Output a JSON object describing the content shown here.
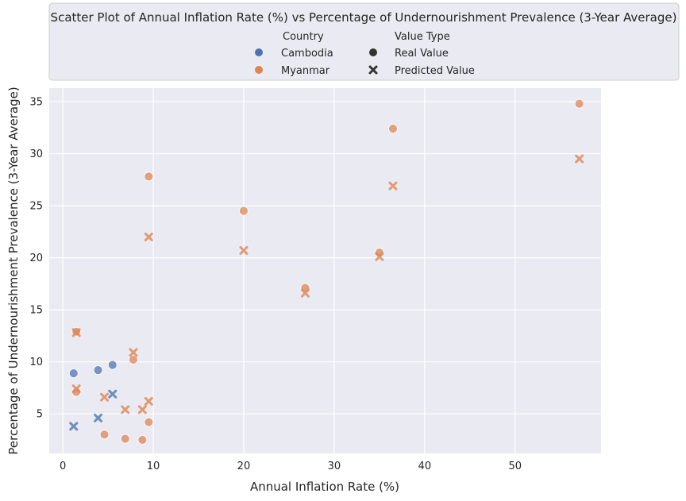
{
  "chart_data": {
    "type": "scatter",
    "title": "Scatter Plot of Annual Inflation Rate (%) vs Percentage of Undernourishment Prevalence (3-Year Average)",
    "xlabel": "Annual Inflation Rate (%)",
    "ylabel": "Percentage of Undernourishment Prevalence (3-Year Average)",
    "xlim": [
      -1.5,
      59.5
    ],
    "ylim": [
      1.2,
      36.3
    ],
    "xticks": [
      0,
      10,
      20,
      30,
      40,
      50
    ],
    "yticks": [
      5,
      10,
      15,
      20,
      25,
      30,
      35
    ],
    "grid": true,
    "legend_position": "top-center",
    "legend": {
      "hue_title": "Country",
      "style_title": "Value Type",
      "hue_entries": [
        {
          "label": "Cambodia",
          "color": "#4c72b0"
        },
        {
          "label": "Myanmar",
          "color": "#dd8452"
        }
      ],
      "style_entries": [
        {
          "label": "Real Value",
          "marker": "circle"
        },
        {
          "label": "Predicted Value",
          "marker": "x"
        }
      ]
    },
    "colors": {
      "Cambodia": "#4c72b0",
      "Myanmar": "#dd8452",
      "plot_bg": "#eaeaf2",
      "grid": "#ffffff"
    },
    "series": [
      {
        "country": "Cambodia",
        "type": "Real Value",
        "marker": "circle",
        "points": [
          [
            1.2,
            8.9
          ],
          [
            3.9,
            9.2
          ],
          [
            5.5,
            9.7
          ]
        ]
      },
      {
        "country": "Cambodia",
        "type": "Predicted Value",
        "marker": "x",
        "points": [
          [
            1.2,
            3.8
          ],
          [
            3.9,
            4.6
          ],
          [
            5.5,
            6.9
          ]
        ]
      },
      {
        "country": "Myanmar",
        "type": "Real Value",
        "marker": "circle",
        "points": [
          [
            1.5,
            12.9
          ],
          [
            1.5,
            7.1
          ],
          [
            4.6,
            3.0
          ],
          [
            6.9,
            2.6
          ],
          [
            7.8,
            10.2
          ],
          [
            8.8,
            2.5
          ],
          [
            9.5,
            27.8
          ],
          [
            9.5,
            4.2
          ],
          [
            20.0,
            24.5
          ],
          [
            26.8,
            17.1
          ],
          [
            35.0,
            20.5
          ],
          [
            36.5,
            32.4
          ],
          [
            57.1,
            34.8
          ]
        ]
      },
      {
        "country": "Myanmar",
        "type": "Predicted Value",
        "marker": "x",
        "points": [
          [
            1.5,
            12.8
          ],
          [
            1.5,
            7.4
          ],
          [
            4.6,
            6.6
          ],
          [
            6.9,
            5.4
          ],
          [
            7.8,
            10.9
          ],
          [
            8.8,
            5.4
          ],
          [
            9.5,
            22.0
          ],
          [
            9.5,
            6.2
          ],
          [
            20.0,
            20.7
          ],
          [
            26.8,
            16.6
          ],
          [
            35.0,
            20.1
          ],
          [
            36.5,
            26.9
          ],
          [
            57.1,
            29.5
          ]
        ]
      }
    ]
  }
}
